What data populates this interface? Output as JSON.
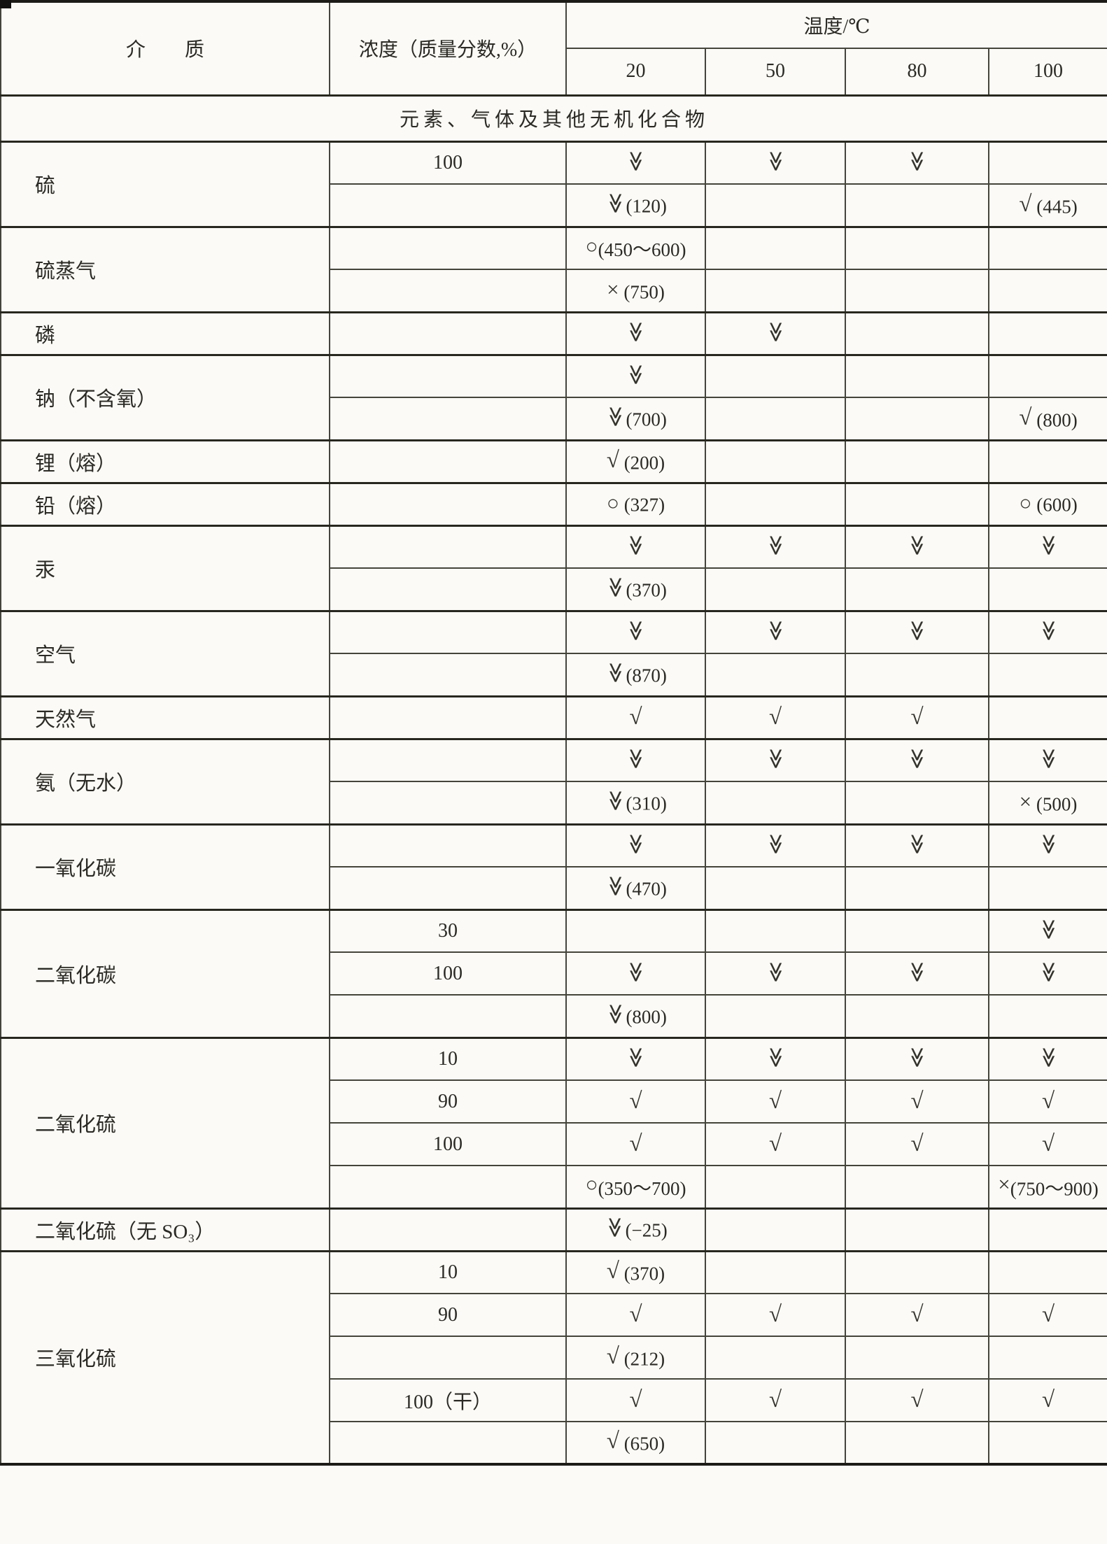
{
  "page": {
    "background": "#fbfaf6",
    "border_color": "#45443b",
    "text_color": "#2b2a25"
  },
  "header": {
    "medium_label": "介　　质",
    "concentration_label": "浓度（质量分数,%）",
    "temperature_label": "温度/℃",
    "temps": [
      "20",
      "50",
      "80",
      "100"
    ]
  },
  "section_title": "元素、气体及其他无机化合物",
  "symbols": {
    "vv": "≫",
    "check": "√",
    "circle": "○",
    "cross": "×"
  },
  "symbol_meanings": {
    "vv": "double-chevron-down-mark",
    "check": "check-mark",
    "circle": "circle-mark",
    "cross": "cross-mark"
  },
  "groups": [
    {
      "medium": "硫",
      "rows": [
        {
          "conc": "100",
          "cells": [
            "vv",
            "vv",
            "vv",
            ""
          ]
        },
        {
          "conc": "",
          "cells": [
            "vv|(120)",
            "",
            "",
            "check| (445)"
          ]
        }
      ]
    },
    {
      "medium": "硫蒸气",
      "rows": [
        {
          "conc": "",
          "cells": [
            "circle|(450～600)",
            "",
            "",
            ""
          ]
        },
        {
          "conc": "",
          "cells": [
            "cross| (750)",
            "",
            "",
            ""
          ]
        }
      ]
    },
    {
      "medium": "磷",
      "rows": [
        {
          "conc": "",
          "cells": [
            "vv",
            "vv",
            "",
            ""
          ]
        }
      ]
    },
    {
      "medium": "钠（不含氧）",
      "rows": [
        {
          "conc": "",
          "cells": [
            "vv",
            "",
            "",
            ""
          ]
        },
        {
          "conc": "",
          "cells": [
            "vv|(700)",
            "",
            "",
            "check| (800)"
          ]
        }
      ]
    },
    {
      "medium": "锂（熔）",
      "rows": [
        {
          "conc": "",
          "cells": [
            "check| (200)",
            "",
            "",
            ""
          ]
        }
      ]
    },
    {
      "medium": "铅（熔）",
      "rows": [
        {
          "conc": "",
          "cells": [
            "circle| (327)",
            "",
            "",
            "circle| (600)"
          ]
        }
      ]
    },
    {
      "medium": "汞",
      "rows": [
        {
          "conc": "",
          "cells": [
            "vv",
            "vv",
            "vv",
            "vv"
          ]
        },
        {
          "conc": "",
          "cells": [
            "vv|(370)",
            "",
            "",
            ""
          ]
        }
      ]
    },
    {
      "medium": "空气",
      "rows": [
        {
          "conc": "",
          "cells": [
            "vv",
            "vv",
            "vv",
            "vv"
          ]
        },
        {
          "conc": "",
          "cells": [
            "vv|(870)",
            "",
            "",
            ""
          ]
        }
      ]
    },
    {
      "medium": "天然气",
      "rows": [
        {
          "conc": "",
          "cells": [
            "check",
            "check",
            "check",
            ""
          ]
        }
      ]
    },
    {
      "medium": "氨（无水）",
      "rows": [
        {
          "conc": "",
          "cells": [
            "vv",
            "vv",
            "vv",
            "vv"
          ]
        },
        {
          "conc": "",
          "cells": [
            "vv|(310)",
            "",
            "",
            "cross| (500)"
          ]
        }
      ]
    },
    {
      "medium": "一氧化碳",
      "rows": [
        {
          "conc": "",
          "cells": [
            "vv",
            "vv",
            "vv",
            "vv"
          ]
        },
        {
          "conc": "",
          "cells": [
            "vv|(470)",
            "",
            "",
            ""
          ]
        }
      ]
    },
    {
      "medium": "二氧化碳",
      "rows": [
        {
          "conc": "30",
          "cells": [
            "",
            "",
            "",
            "vv"
          ]
        },
        {
          "conc": "100",
          "cells": [
            "vv",
            "vv",
            "vv",
            "vv"
          ]
        },
        {
          "conc": "",
          "cells": [
            "vv|(800)",
            "",
            "",
            ""
          ]
        }
      ]
    },
    {
      "medium": "二氧化硫",
      "rows": [
        {
          "conc": "10",
          "cells": [
            "vv",
            "vv",
            "vv",
            "vv"
          ]
        },
        {
          "conc": "90",
          "cells": [
            "check",
            "check",
            "check",
            "check"
          ]
        },
        {
          "conc": "100",
          "cells": [
            "check",
            "check",
            "check",
            "check"
          ]
        },
        {
          "conc": "",
          "cells": [
            "circle|(350～700)",
            "",
            "",
            "cross|(750～900)"
          ]
        }
      ]
    },
    {
      "medium": "二氧化硫（无 SO₃）",
      "rows": [
        {
          "conc": "",
          "cells": [
            "vv|(−25)",
            "",
            "",
            ""
          ]
        }
      ]
    },
    {
      "medium": "三氧化硫",
      "rows": [
        {
          "conc": "10",
          "cells": [
            "check| (370)",
            "",
            "",
            ""
          ]
        },
        {
          "conc": "90",
          "cells": [
            "check",
            "check",
            "check",
            "check"
          ]
        },
        {
          "conc": "",
          "cells": [
            "check| (212)",
            "",
            "",
            ""
          ]
        },
        {
          "conc": "100（干）",
          "cells": [
            "check",
            "check",
            "check",
            "check"
          ]
        },
        {
          "conc": "",
          "cells": [
            "check| (650)",
            "",
            "",
            ""
          ]
        }
      ]
    }
  ]
}
